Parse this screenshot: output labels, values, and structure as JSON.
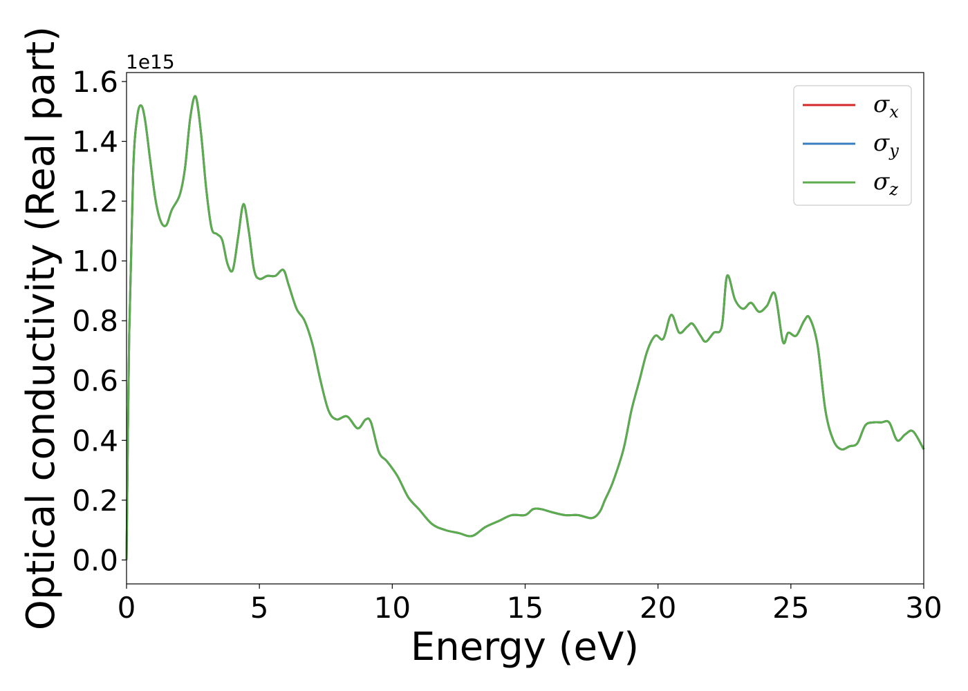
{
  "chart_data": {
    "type": "line",
    "title": "",
    "xlabel": "Energy (eV)",
    "ylabel": "Optical conductivity (Real part)",
    "y_offset_label": "1e15",
    "xlim": [
      0,
      30
    ],
    "ylim": [
      -0.08,
      1.63
    ],
    "x_ticks": [
      0,
      5,
      10,
      15,
      20,
      25,
      30
    ],
    "y_ticks": [
      0.0,
      0.2,
      0.4,
      0.6,
      0.8,
      1.0,
      1.2,
      1.4,
      1.6
    ],
    "x_tick_labels": [
      "0",
      "5",
      "10",
      "15",
      "20",
      "25",
      "30"
    ],
    "y_tick_labels": [
      "0.0",
      "0.2",
      "0.4",
      "0.6",
      "0.8",
      "1.0",
      "1.2",
      "1.4",
      "1.6"
    ],
    "grid": false,
    "legend_position": "top-right",
    "x": [
      0,
      0.1,
      0.25,
      0.4,
      0.55,
      0.7,
      0.9,
      1.1,
      1.3,
      1.5,
      1.7,
      2.0,
      2.2,
      2.4,
      2.6,
      2.8,
      3.0,
      3.2,
      3.4,
      3.6,
      3.8,
      4.0,
      4.2,
      4.4,
      4.6,
      4.8,
      5.0,
      5.3,
      5.6,
      5.9,
      6.1,
      6.4,
      6.7,
      7.0,
      7.3,
      7.6,
      7.9,
      8.3,
      8.7,
      9.0,
      9.2,
      9.5,
      9.8,
      10.2,
      10.6,
      11.0,
      11.5,
      12.0,
      12.5,
      13.0,
      13.5,
      14.0,
      14.5,
      15.0,
      15.3,
      15.6,
      16.0,
      16.5,
      17.0,
      17.5,
      17.8,
      18.0,
      18.3,
      18.7,
      19.0,
      19.3,
      19.6,
      19.9,
      20.2,
      20.5,
      20.8,
      21.1,
      21.3,
      21.6,
      21.8,
      22.1,
      22.4,
      22.6,
      22.9,
      23.2,
      23.5,
      23.8,
      24.1,
      24.4,
      24.7,
      24.9,
      25.2,
      25.5,
      25.7,
      26.0,
      26.3,
      26.6,
      26.9,
      27.2,
      27.5,
      27.8,
      28.1,
      28.4,
      28.7,
      29.0,
      29.3,
      29.6,
      30.0
    ],
    "series": [
      {
        "name": "σx",
        "color": "#d62728",
        "values": [
          0.0,
          0.75,
          1.3,
          1.48,
          1.52,
          1.47,
          1.33,
          1.2,
          1.13,
          1.12,
          1.17,
          1.22,
          1.31,
          1.48,
          1.55,
          1.43,
          1.24,
          1.11,
          1.09,
          1.07,
          0.99,
          0.97,
          1.08,
          1.19,
          1.1,
          0.97,
          0.94,
          0.95,
          0.95,
          0.97,
          0.92,
          0.84,
          0.8,
          0.72,
          0.6,
          0.5,
          0.47,
          0.48,
          0.44,
          0.47,
          0.46,
          0.36,
          0.33,
          0.28,
          0.21,
          0.17,
          0.12,
          0.1,
          0.09,
          0.08,
          0.11,
          0.13,
          0.15,
          0.15,
          0.17,
          0.17,
          0.16,
          0.15,
          0.15,
          0.14,
          0.16,
          0.2,
          0.26,
          0.37,
          0.5,
          0.6,
          0.7,
          0.75,
          0.74,
          0.82,
          0.76,
          0.78,
          0.79,
          0.75,
          0.73,
          0.76,
          0.78,
          0.95,
          0.87,
          0.84,
          0.86,
          0.83,
          0.85,
          0.89,
          0.73,
          0.76,
          0.75,
          0.8,
          0.81,
          0.72,
          0.5,
          0.4,
          0.37,
          0.38,
          0.39,
          0.45,
          0.46,
          0.46,
          0.46,
          0.4,
          0.42,
          0.43,
          0.37
        ]
      },
      {
        "name": "σy",
        "color": "#3a7dbf",
        "values": [
          0.0,
          0.75,
          1.3,
          1.48,
          1.52,
          1.47,
          1.33,
          1.2,
          1.13,
          1.12,
          1.17,
          1.22,
          1.31,
          1.48,
          1.55,
          1.43,
          1.24,
          1.11,
          1.09,
          1.07,
          0.99,
          0.97,
          1.08,
          1.19,
          1.1,
          0.97,
          0.94,
          0.95,
          0.95,
          0.97,
          0.92,
          0.84,
          0.8,
          0.72,
          0.6,
          0.5,
          0.47,
          0.48,
          0.44,
          0.47,
          0.46,
          0.36,
          0.33,
          0.28,
          0.21,
          0.17,
          0.12,
          0.1,
          0.09,
          0.08,
          0.11,
          0.13,
          0.15,
          0.15,
          0.17,
          0.17,
          0.16,
          0.15,
          0.15,
          0.14,
          0.16,
          0.2,
          0.26,
          0.37,
          0.5,
          0.6,
          0.7,
          0.75,
          0.74,
          0.82,
          0.76,
          0.78,
          0.79,
          0.75,
          0.73,
          0.76,
          0.78,
          0.95,
          0.87,
          0.84,
          0.86,
          0.83,
          0.85,
          0.89,
          0.73,
          0.76,
          0.75,
          0.8,
          0.81,
          0.72,
          0.5,
          0.4,
          0.37,
          0.38,
          0.39,
          0.45,
          0.46,
          0.46,
          0.46,
          0.4,
          0.42,
          0.43,
          0.37
        ]
      },
      {
        "name": "σz",
        "color": "#5aac4d",
        "values": [
          0.0,
          0.75,
          1.3,
          1.48,
          1.52,
          1.47,
          1.33,
          1.2,
          1.13,
          1.12,
          1.17,
          1.22,
          1.31,
          1.48,
          1.55,
          1.43,
          1.24,
          1.11,
          1.09,
          1.07,
          0.99,
          0.97,
          1.08,
          1.19,
          1.1,
          0.97,
          0.94,
          0.95,
          0.95,
          0.97,
          0.92,
          0.84,
          0.8,
          0.72,
          0.6,
          0.5,
          0.47,
          0.48,
          0.44,
          0.47,
          0.46,
          0.36,
          0.33,
          0.28,
          0.21,
          0.17,
          0.12,
          0.1,
          0.09,
          0.08,
          0.11,
          0.13,
          0.15,
          0.15,
          0.17,
          0.17,
          0.16,
          0.15,
          0.15,
          0.14,
          0.16,
          0.2,
          0.26,
          0.37,
          0.5,
          0.6,
          0.7,
          0.75,
          0.74,
          0.82,
          0.76,
          0.78,
          0.79,
          0.75,
          0.73,
          0.76,
          0.78,
          0.95,
          0.87,
          0.84,
          0.86,
          0.83,
          0.85,
          0.89,
          0.73,
          0.76,
          0.75,
          0.8,
          0.81,
          0.72,
          0.5,
          0.4,
          0.37,
          0.38,
          0.39,
          0.45,
          0.46,
          0.46,
          0.46,
          0.4,
          0.42,
          0.43,
          0.37
        ]
      }
    ],
    "legend": [
      {
        "symbol": "σ",
        "sub": "x",
        "color": "#d62728"
      },
      {
        "symbol": "σ",
        "sub": "y",
        "color": "#3a7dbf"
      },
      {
        "symbol": "σ",
        "sub": "z",
        "color": "#5aac4d"
      }
    ]
  }
}
